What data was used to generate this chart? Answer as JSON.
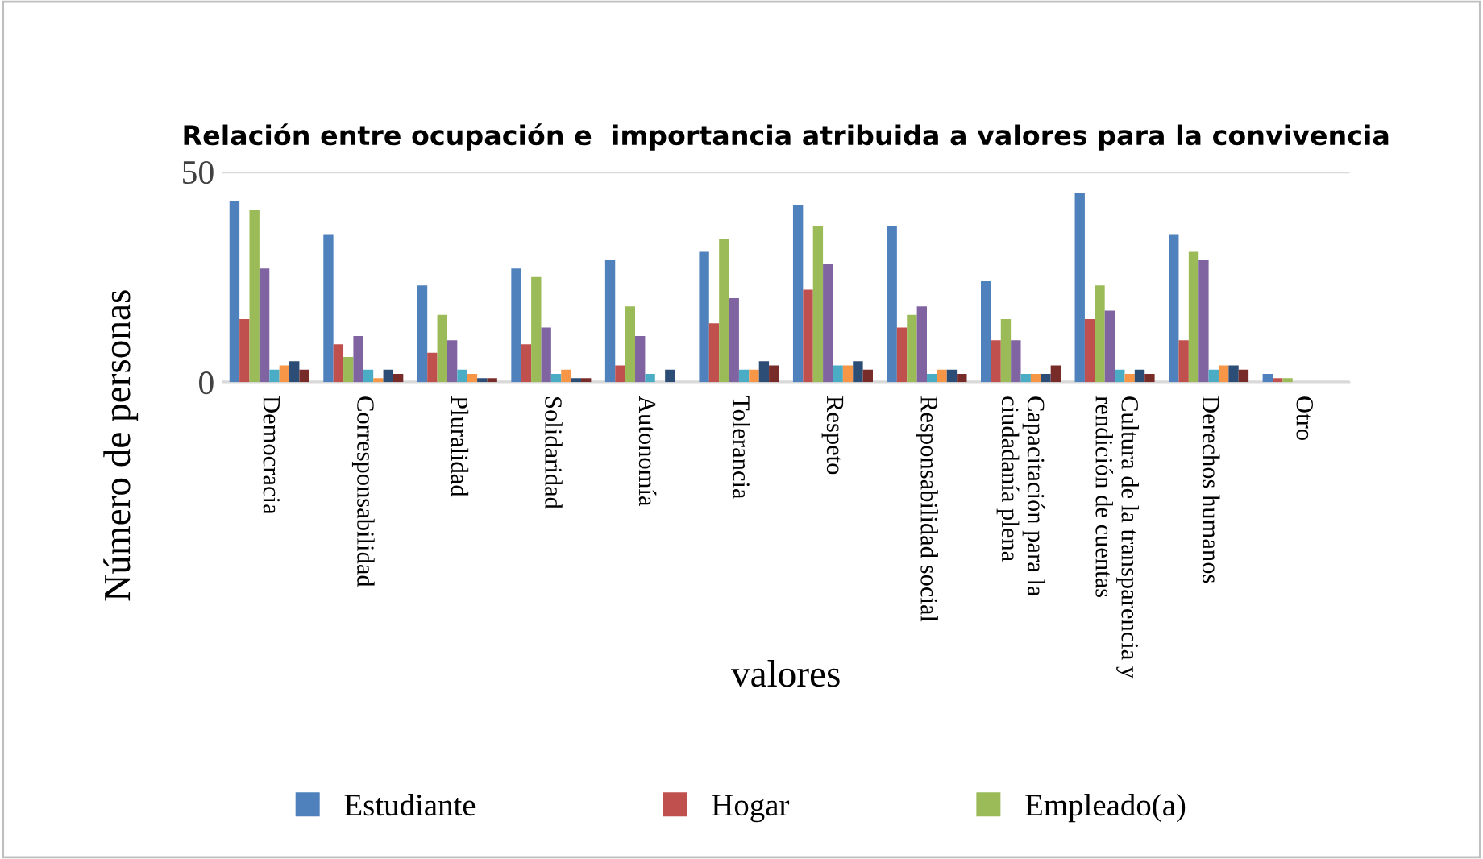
{
  "chart_data": {
    "type": "bar",
    "title": "Relación entre ocupación e  importancia atribuida a valores para la convivencia",
    "xlabel": "valores",
    "ylabel": "Número de personas",
    "categories": [
      "Democracia",
      "Corresponsabilidad",
      "Pluralidad",
      "Solidaridad",
      "Autonomía",
      "Tolerancia",
      "Respeto",
      "Responsabilidad social",
      "Capacitación para la\nciudadanía plena",
      "Cultura de la transparencia y\nrendición de cuentas",
      "Derechos humanos",
      "Otro"
    ],
    "series": [
      {
        "name": "Estudiante",
        "color": "#4f81bd",
        "values": [
          43,
          35,
          23,
          27,
          29,
          31,
          42,
          37,
          24,
          45,
          35,
          2
        ]
      },
      {
        "name": "Hogar",
        "color": "#c0504d",
        "values": [
          15,
          9,
          7,
          9,
          4,
          14,
          22,
          13,
          10,
          15,
          10,
          1
        ]
      },
      {
        "name": "Empleado(a)",
        "color": "#9bbb59",
        "values": [
          41,
          6,
          16,
          25,
          18,
          34,
          37,
          16,
          15,
          23,
          31,
          1
        ]
      },
      {
        "color": "#8064a2",
        "values": [
          27,
          11,
          10,
          13,
          11,
          20,
          28,
          18,
          10,
          17,
          29,
          0
        ]
      },
      {
        "color": "#4bacc6",
        "values": [
          3,
          3,
          3,
          2,
          2,
          3,
          4,
          2,
          2,
          3,
          3,
          0
        ]
      },
      {
        "color": "#f79646",
        "values": [
          4,
          1,
          2,
          3,
          0,
          3,
          4,
          3,
          2,
          2,
          4,
          0
        ]
      },
      {
        "color": "#2c4d75",
        "values": [
          5,
          3,
          1,
          1,
          3,
          5,
          5,
          3,
          2,
          3,
          4,
          0
        ]
      },
      {
        "color": "#772c2a",
        "values": [
          3,
          2,
          1,
          1,
          0,
          4,
          3,
          2,
          4,
          2,
          3,
          0
        ]
      }
    ],
    "ylim": [
      0,
      50
    ],
    "yticks": [
      0,
      50
    ],
    "grid": "y",
    "legend": "bottom"
  }
}
